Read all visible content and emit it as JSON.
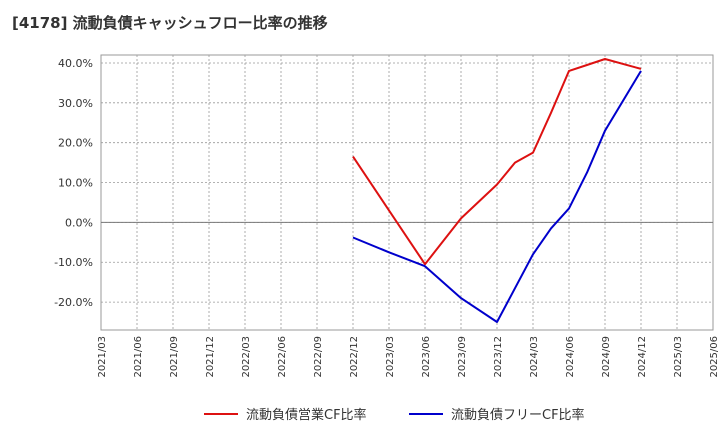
{
  "title": "[4178]  流動負債キャッシュフロー比率の推移",
  "chart_data": {
    "type": "line",
    "title": "[4178]  流動負債キャッシュフロー比率の推移",
    "xlabel": "",
    "ylabel": "",
    "ylim": [
      -27,
      42
    ],
    "grid": true,
    "legend_position": "bottom",
    "y_ticks": [
      "-20.0%",
      "-10.0%",
      "0.0%",
      "10.0%",
      "20.0%",
      "30.0%",
      "40.0%"
    ],
    "y_tick_values": [
      -20,
      -10,
      0,
      10,
      20,
      30,
      40
    ],
    "x_ticks": [
      "2021/03",
      "2021/06",
      "2021/09",
      "2021/12",
      "2022/03",
      "2022/06",
      "2022/09",
      "2022/12",
      "2023/03",
      "2023/06",
      "2023/09",
      "2023/12",
      "2024/03",
      "2024/06",
      "2024/09",
      "2024/12",
      "2025/03",
      "2025/06"
    ],
    "series": [
      {
        "name": "流動負債営業CF比率",
        "color": "#dd1111",
        "x": [
          7,
          8,
          9,
          10,
          11,
          11.5,
          12,
          12.5,
          13,
          13.5,
          14,
          15
        ],
        "values": [
          16.5,
          3.0,
          -10.5,
          1.0,
          9.5,
          15.0,
          17.5,
          27.5,
          38.0,
          39.5,
          41.0,
          38.5
        ]
      },
      {
        "name": "流動負債フリーCF比率",
        "color": "#0000cc",
        "x": [
          7,
          8,
          9,
          10,
          11,
          11.5,
          12,
          12.5,
          13,
          13.5,
          14,
          15
        ],
        "values": [
          -3.8,
          -7.5,
          -11.0,
          -19.0,
          -25.0,
          -16.5,
          -8.0,
          -1.5,
          3.5,
          12.5,
          23.0,
          38.0
        ]
      }
    ]
  }
}
